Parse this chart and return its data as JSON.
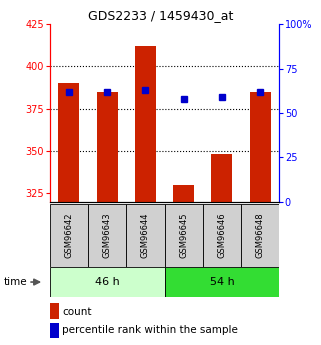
{
  "title": "GDS2233 / 1459430_at",
  "categories": [
    "GSM96642",
    "GSM96643",
    "GSM96644",
    "GSM96645",
    "GSM96646",
    "GSM96648"
  ],
  "counts": [
    390,
    385,
    412,
    330,
    348,
    385
  ],
  "percentiles": [
    62,
    62,
    63,
    58,
    59,
    62
  ],
  "ylim_left": [
    320,
    425
  ],
  "ylim_right": [
    0,
    100
  ],
  "yticks_left": [
    325,
    350,
    375,
    400,
    425
  ],
  "yticks_right": [
    0,
    25,
    50,
    75,
    100
  ],
  "ytick_labels_right": [
    "0",
    "25",
    "50",
    "75",
    "100%"
  ],
  "bar_color": "#cc2200",
  "dot_color": "#0000cc",
  "group1_label": "46 h",
  "group2_label": "54 h",
  "group1_indices": [
    0,
    1,
    2
  ],
  "group2_indices": [
    3,
    4,
    5
  ],
  "group1_bg": "#ccffcc",
  "group2_bg": "#33dd33",
  "time_label": "time",
  "legend_count": "count",
  "legend_percentile": "percentile rank within the sample",
  "bar_width": 0.55,
  "dot_size": 5,
  "grid_ticks": [
    350,
    375,
    400
  ]
}
